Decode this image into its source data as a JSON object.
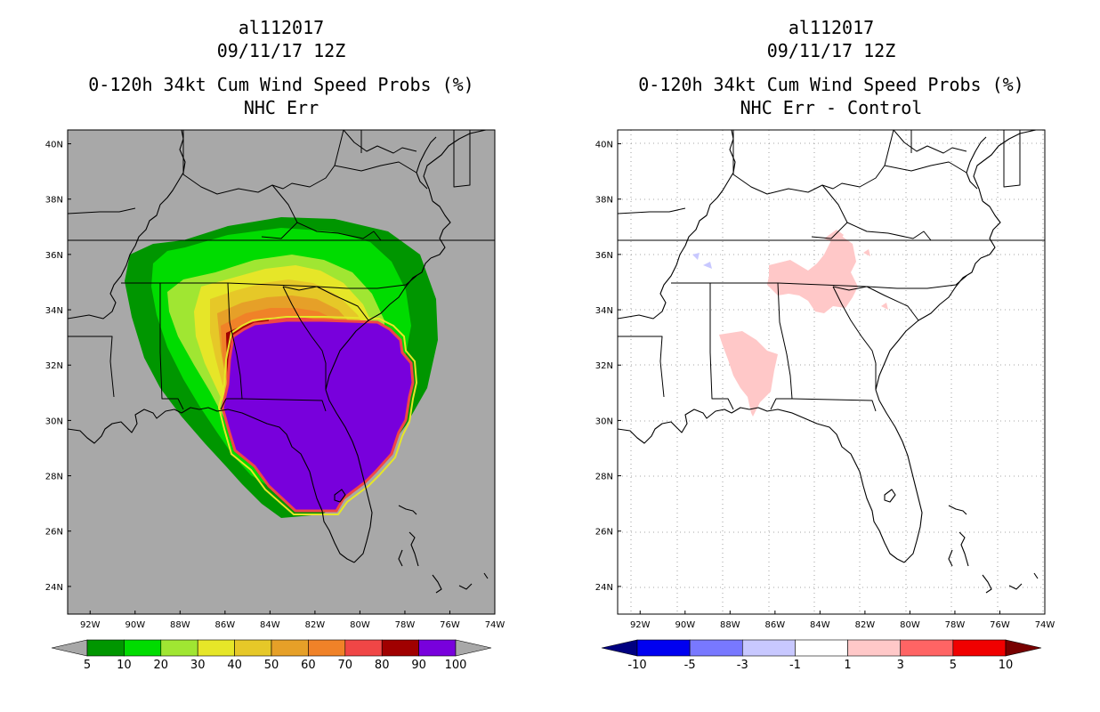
{
  "left": {
    "storm_id": "al112017",
    "date": "09/11/17 12Z",
    "product": "0-120h 34kt Cum Wind Speed Probs (%)",
    "subtitle": "NHC Err",
    "colorbar": {
      "labels": [
        "5",
        "10",
        "20",
        "30",
        "40",
        "50",
        "60",
        "70",
        "80",
        "90",
        "100"
      ],
      "colors": [
        "#a8a8a8",
        "#009600",
        "#00dc00",
        "#a0e632",
        "#e6e628",
        "#e6c828",
        "#e6a028",
        "#f08228",
        "#f04646",
        "#a00000",
        "#7800dc",
        "#a8a8a8"
      ]
    }
  },
  "right": {
    "storm_id": "al112017",
    "date": "09/11/17 12Z",
    "product": "0-120h 34kt Cum Wind Speed Probs (%)",
    "subtitle": "NHC Err - Control",
    "colorbar": {
      "labels": [
        "-10",
        "-5",
        "-3",
        "-1",
        "1",
        "3",
        "5",
        "10"
      ],
      "colors": [
        "#000080",
        "#0000f0",
        "#7878ff",
        "#c8c8ff",
        "#ffffff",
        "#ffc8c8",
        "#ff6464",
        "#f00000",
        "#780000"
      ]
    }
  },
  "map": {
    "lat_labels": [
      "40N",
      "38N",
      "36N",
      "34N",
      "32N",
      "30N",
      "28N",
      "26N",
      "24N"
    ],
    "lon_labels": [
      "92W",
      "90W",
      "88W",
      "86W",
      "84W",
      "82W",
      "80W",
      "78W",
      "76W",
      "74W"
    ],
    "lat_values": [
      40,
      38,
      36,
      34,
      32,
      30,
      28,
      26,
      24
    ],
    "lon_values": [
      92,
      90,
      88,
      86,
      84,
      82,
      80,
      78,
      76,
      74
    ],
    "extent": {
      "lon_min": -93,
      "lon_max": -74,
      "lat_min": 23,
      "lat_max": 40.5
    }
  }
}
